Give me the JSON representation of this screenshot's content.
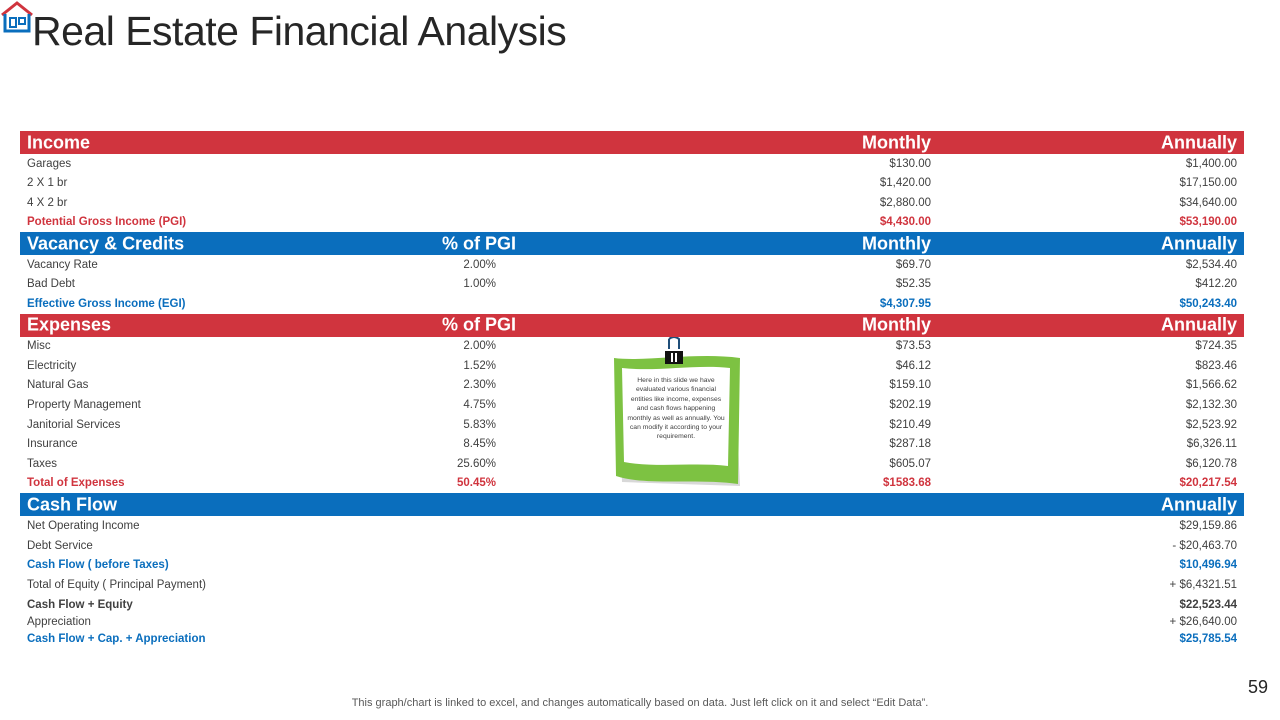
{
  "title": "Real Estate Financial Analysis",
  "income": {
    "header": {
      "label": "Income",
      "monthly": "Monthly",
      "annually": "Annually"
    },
    "rows": [
      {
        "label": "Garages",
        "monthly": "$130.00",
        "annually": "$1,400.00"
      },
      {
        "label": "2 X 1 br",
        "monthly": "$1,420.00",
        "annually": "$17,150.00"
      },
      {
        "label": "4 X 2 br",
        "monthly": "$2,880.00",
        "annually": "$34,640.00"
      }
    ],
    "total": {
      "label": "Potential Gross Income (PGI)",
      "monthly": "$4,430.00",
      "annually": "$53,190.00"
    }
  },
  "vacancy": {
    "header": {
      "label": "Vacancy & Credits",
      "pgi": "% of PGI",
      "monthly": "Monthly",
      "annually": "Annually"
    },
    "rows": [
      {
        "label": "Vacancy Rate",
        "pgi": "2.00%",
        "monthly": "$69.70",
        "annually": "$2,534.40"
      },
      {
        "label": "Bad Debt",
        "pgi": "1.00%",
        "monthly": "$52.35",
        "annually": "$412.20"
      }
    ],
    "total": {
      "label": "Effective Gross Income (EGI)",
      "monthly": "$4,307.95",
      "annually": "$50,243.40"
    }
  },
  "expenses": {
    "header": {
      "label": "Expenses",
      "pgi": "% of PGI",
      "monthly": "Monthly",
      "annually": "Annually"
    },
    "rows": [
      {
        "label": "Misc",
        "pgi": "2.00%",
        "monthly": "$73.53",
        "annually": "$724.35"
      },
      {
        "label": "Electricity",
        "pgi": "1.52%",
        "monthly": "$46.12",
        "annually": "$823.46"
      },
      {
        "label": "Natural Gas",
        "pgi": "2.30%",
        "monthly": "$159.10",
        "annually": "$1,566.62"
      },
      {
        "label": "Property Management",
        "pgi": "4.75%",
        "monthly": "$202.19",
        "annually": "$2,132.30"
      },
      {
        "label": "Janitorial Services",
        "pgi": "5.83%",
        "monthly": "$210.49",
        "annually": "$2,523.92"
      },
      {
        "label": "Insurance",
        "pgi": "8.45%",
        "monthly": "$287.18",
        "annually": "$6,326.11"
      },
      {
        "label": "Taxes",
        "pgi": "25.60%",
        "monthly": "$605.07",
        "annually": "$6,120.78"
      }
    ],
    "total": {
      "label": "Total of Expenses",
      "pgi": "50.45%",
      "monthly": "$1583.68",
      "annually": "$20,217.54"
    }
  },
  "cashflow": {
    "header": {
      "label": "Cash Flow",
      "annually": "Annually"
    },
    "rows": [
      {
        "label": "Net Operating Income",
        "annually": "$29,159.86"
      },
      {
        "label": "Debt Service",
        "annually": "- $20,463.70"
      },
      {
        "label": "Cash Flow ( before Taxes)",
        "annually": "$10,496.94"
      },
      {
        "label": "Total of Equity ( Principal Payment)",
        "annually": "+ $6,4321.51"
      },
      {
        "label": "Cash Flow + Equity",
        "annually": "$22,523.44"
      },
      {
        "label": "Appreciation",
        "annually": "+ $26,640.00"
      },
      {
        "label": "Cash Flow + Cap. + Appreciation",
        "annually": "$25,785.54"
      }
    ]
  },
  "note": "Here in this slide we have evaluated various financial entities like income, expenses and cash flows happening monthly as well as annually. You can modify it according to your requirement.",
  "footer": "This graph/chart is linked to excel, and changes automatically based on data. Just left click on it and select “Edit Data”.",
  "page_number": "59",
  "colors": {
    "red": "#d0343e",
    "blue": "#0a6ebd",
    "note_green": "#7dc242"
  }
}
